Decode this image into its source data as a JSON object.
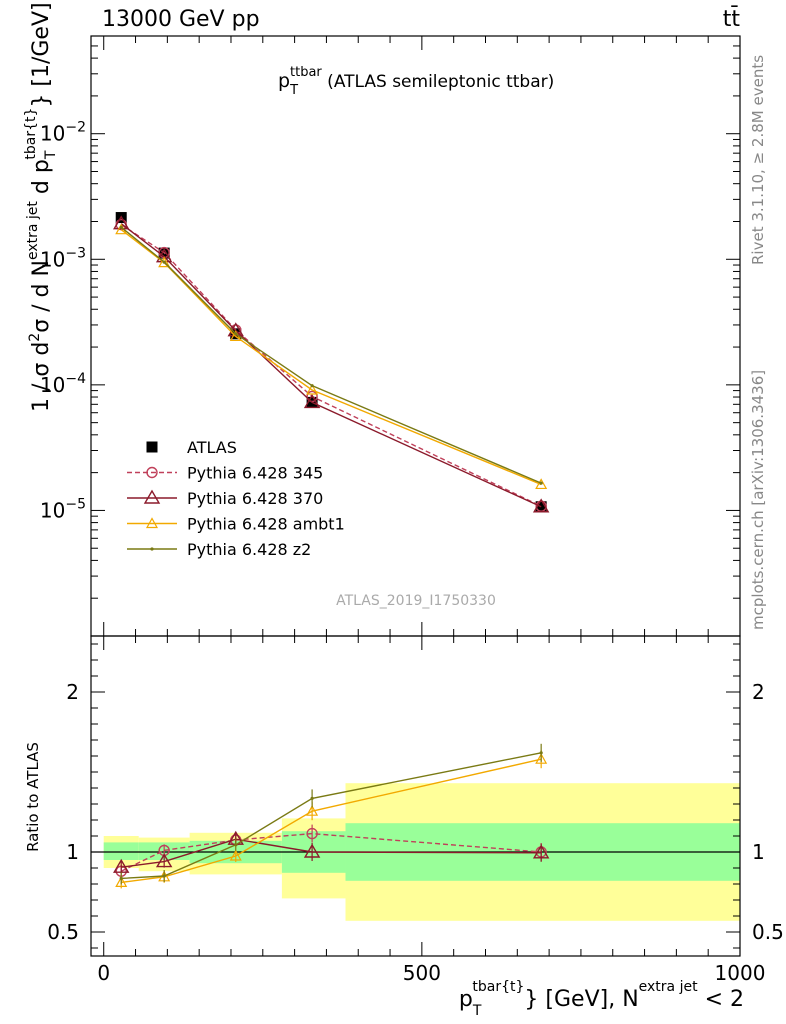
{
  "header": {
    "left": "13000 GeV pp",
    "right": "tt̄"
  },
  "side_text": {
    "rivet": "Rivet 3.1.10, ≥ 2.8M events",
    "mcplots": "mcplots.cern.ch [arXiv:1306.3436]"
  },
  "colors": {
    "atlas": "#000000",
    "py345": "#c0405a",
    "py370": "#8b1a2b",
    "ambt1": "#f2a900",
    "z2": "#7a7a14",
    "band_inner": "#99ff99",
    "band_outer": "#ffff99"
  },
  "chart_data": [
    {
      "type": "scatter",
      "title": {
        "main": "p",
        "sub": "T",
        "sup": "ttbar",
        "rest": " (ATLAS semileptonic ttbar)"
      },
      "watermark": "ATLAS_2019_I1750330",
      "ylabel": {
        "a": "1 / σ d",
        "a_sup": "2",
        "b": "σ / d N",
        "b_sup": "extra jet",
        "c": " d p",
        "c_sub": "T",
        "c_sup": "tbar{t}",
        "d": "} [1/GeV]"
      },
      "xlim": [
        -20,
        1000
      ],
      "ylim": [
        1e-06,
        0.06
      ],
      "yscale": "log",
      "y_ticks": [
        {
          "value": 0.01,
          "mant": "10",
          "exp": "−2"
        },
        {
          "value": 0.001,
          "mant": "10",
          "exp": "−3"
        },
        {
          "value": 0.0001,
          "mant": "10",
          "exp": "−4"
        },
        {
          "value": 1e-05,
          "mant": "10",
          "exp": "−5"
        }
      ],
      "x": [
        27.5,
        95,
        207.5,
        327.5,
        687.5
      ],
      "series": [
        {
          "name": "ATLAS",
          "key": "atlas",
          "marker": "square",
          "values": [
            0.00215,
            0.00112,
            0.000255,
            7.25e-05,
            1.07e-05
          ]
        },
        {
          "name": "Pythia 6.428 345",
          "key": "py345",
          "marker": "circle",
          "dash": true,
          "values": [
            0.00189,
            0.00113,
            0.000274,
            8.08e-05,
            1.08e-05
          ]
        },
        {
          "name": "Pythia 6.428 370",
          "key": "py370",
          "marker": "triangle",
          "values": [
            0.00192,
            0.00105,
            0.00027,
            7.25e-05,
            1.07e-05
          ]
        },
        {
          "name": "Pythia 6.428 ambt1",
          "key": "ambt1",
          "marker": "smalltriangle",
          "values": [
            0.00172,
            0.00094,
            0.000243,
            9.1e-05,
            1.61e-05
          ]
        },
        {
          "name": "Pythia 6.428 z2",
          "key": "z2",
          "marker": "dot",
          "values": [
            0.0018,
            0.00095,
            0.000255,
            9.85e-05,
            1.65e-05
          ]
        }
      ]
    },
    {
      "type": "scatter",
      "ylabel": "Ratio to ATLAS",
      "xlabel": {
        "a": "p",
        "a_sub": "T",
        "a_sup": "tbar{t}",
        "b": "} [GeV], N",
        "b_sup": "extra jet",
        "c": " < 2"
      },
      "xlim": [
        -20,
        1000
      ],
      "ylim": [
        0.35,
        2.35
      ],
      "x_ticks": [
        0,
        500,
        1000
      ],
      "y_ticks": [
        0.5,
        1,
        2
      ],
      "reference": 1,
      "band_bins": [
        {
          "x0": 0,
          "x1": 55,
          "outer": [
            0.9,
            1.1
          ],
          "inner": [
            0.95,
            1.06
          ]
        },
        {
          "x0": 55,
          "x1": 135,
          "outer": [
            0.88,
            1.09
          ],
          "inner": [
            0.95,
            1.06
          ]
        },
        {
          "x0": 135,
          "x1": 280,
          "outer": [
            0.86,
            1.12
          ],
          "inner": [
            0.93,
            1.07
          ]
        },
        {
          "x0": 280,
          "x1": 380,
          "outer": [
            0.71,
            1.21
          ],
          "inner": [
            0.87,
            1.13
          ]
        },
        {
          "x0": 380,
          "x1": 1000,
          "outer": [
            0.57,
            1.43
          ],
          "inner": [
            0.82,
            1.18
          ]
        }
      ],
      "x": [
        27.5,
        95,
        207.5,
        327.5,
        687.5
      ],
      "series": [
        {
          "name": "Pythia 6.428 345",
          "key": "py345",
          "marker": "circle",
          "dash": true,
          "values": [
            0.88,
            1.01,
            1.075,
            1.115,
            1.0
          ]
        },
        {
          "name": "Pythia 6.428 370",
          "key": "py370",
          "marker": "triangle",
          "values": [
            0.905,
            0.94,
            1.08,
            1.0,
            0.995
          ]
        },
        {
          "name": "Pythia 6.428 ambt1",
          "key": "ambt1",
          "marker": "smalltriangle",
          "values": [
            0.81,
            0.845,
            0.975,
            1.255,
            1.58
          ]
        },
        {
          "name": "Pythia 6.428 z2",
          "key": "z2",
          "marker": "dot",
          "values": [
            0.835,
            0.85,
            1.045,
            1.335,
            1.62
          ]
        }
      ]
    }
  ]
}
